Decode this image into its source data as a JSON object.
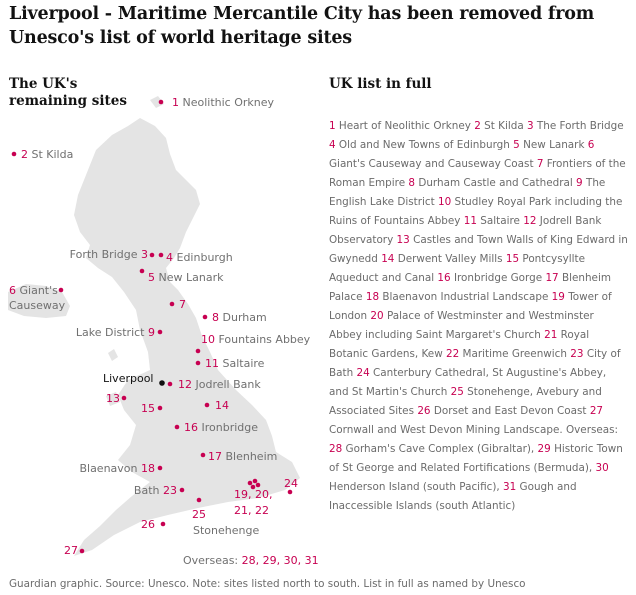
{
  "headline": "Liverpool - Maritime Mercantile City has been removed from Unesco's list of world heritage sites",
  "map_title": "The UK's remaining sites",
  "list_title": "UK list in full",
  "highlight": {
    "label": "Liverpool"
  },
  "map_labels": [
    {
      "id": "1",
      "pre": "",
      "num": "1",
      "text": " Neolithic Orkney",
      "line2": ""
    },
    {
      "id": "2",
      "pre": "",
      "num": "2",
      "text": " St Kilda",
      "line2": ""
    },
    {
      "id": "3",
      "pre": "Forth Bridge ",
      "num": "3",
      "text": "",
      "line2": ""
    },
    {
      "id": "4",
      "pre": "",
      "num": "4",
      "text": " Edinburgh",
      "line2": ""
    },
    {
      "id": "5",
      "pre": "",
      "num": "5",
      "text": " New Lanark",
      "line2": ""
    },
    {
      "id": "6",
      "pre": "",
      "num": "6",
      "text": " Giant's",
      "line2": "Causeway"
    },
    {
      "id": "7",
      "pre": "",
      "num": "7",
      "text": "",
      "line2": ""
    },
    {
      "id": "8",
      "pre": "",
      "num": "8",
      "text": " Durham",
      "line2": ""
    },
    {
      "id": "9",
      "pre": "Lake District ",
      "num": "9",
      "text": "",
      "line2": ""
    },
    {
      "id": "10",
      "pre": "",
      "num": "10",
      "text": " Fountains Abbey",
      "line2": ""
    },
    {
      "id": "11",
      "pre": "",
      "num": "11",
      "text": " Saltaire",
      "line2": ""
    },
    {
      "id": "12",
      "pre": "",
      "num": "12",
      "text": " Jodrell Bank",
      "line2": ""
    },
    {
      "id": "13",
      "pre": "",
      "num": "13",
      "text": "",
      "line2": ""
    },
    {
      "id": "14",
      "pre": "",
      "num": "14",
      "text": "",
      "line2": ""
    },
    {
      "id": "15",
      "pre": "",
      "num": "15",
      "text": "",
      "line2": ""
    },
    {
      "id": "16",
      "pre": "",
      "num": "16",
      "text": " Ironbridge",
      "line2": ""
    },
    {
      "id": "17",
      "pre": "",
      "num": "17",
      "text": " Blenheim",
      "line2": ""
    },
    {
      "id": "18",
      "pre": "Blaenavon ",
      "num": "18",
      "text": "",
      "line2": ""
    },
    {
      "id": "19-22",
      "pre": "",
      "num": "19, 20,",
      "text": "",
      "line2": "21, 22"
    },
    {
      "id": "23",
      "pre": "Bath ",
      "num": "23",
      "text": "",
      "line2": ""
    },
    {
      "id": "24",
      "pre": "",
      "num": "24",
      "text": "",
      "line2": ""
    },
    {
      "id": "25",
      "pre": "",
      "num": "25",
      "text": "",
      "line2": "Stonehenge"
    },
    {
      "id": "26",
      "pre": "",
      "num": "26",
      "text": "",
      "line2": ""
    },
    {
      "id": "27",
      "pre": "",
      "num": "27",
      "text": "",
      "line2": ""
    },
    {
      "id": "overseas",
      "pre": "Overseas: ",
      "num": "28, 29, 30, 31",
      "text": "",
      "line2": ""
    }
  ],
  "full_list": [
    {
      "n": "1",
      "name": "Heart of Neolithic Orkney"
    },
    {
      "n": "2",
      "name": "St Kilda"
    },
    {
      "n": "3",
      "name": "The Forth Bridge"
    },
    {
      "n": "4",
      "name": "Old and New Towns of Edinburgh"
    },
    {
      "n": "5",
      "name": "New Lanark"
    },
    {
      "n": "6",
      "name": "Giant's Causeway and Causeway Coast"
    },
    {
      "n": "7",
      "name": "Frontiers of the Roman Empire"
    },
    {
      "n": "8",
      "name": "Durham Castle and Cathedral"
    },
    {
      "n": "9",
      "name": "The English Lake District"
    },
    {
      "n": "10",
      "name": "Studley Royal Park including the Ruins of Fountains Abbey"
    },
    {
      "n": "11",
      "name": "Saltaire"
    },
    {
      "n": "12",
      "name": "Jodrell Bank Observatory"
    },
    {
      "n": "13",
      "name": "Castles and Town Walls of King Edward in Gwynedd"
    },
    {
      "n": "14",
      "name": "Derwent Valley Mills"
    },
    {
      "n": "15",
      "name": "Pontcysyllte Aqueduct and Canal"
    },
    {
      "n": "16",
      "name": "Ironbridge Gorge"
    },
    {
      "n": "17",
      "name": "Blenheim Palace"
    },
    {
      "n": "18",
      "name": "Blaenavon Industrial Landscape"
    },
    {
      "n": "19",
      "name": "Tower of London"
    },
    {
      "n": "20",
      "name": "Palace of Westminster and Westminster Abbey including Saint Margaret's Church"
    },
    {
      "n": "21",
      "name": "Royal Botanic Gardens, Kew"
    },
    {
      "n": "22",
      "name": "Maritime Greenwich"
    },
    {
      "n": "23",
      "name": "City of Bath"
    },
    {
      "n": "24",
      "name": "Canterbury Cathedral, St Augustine's Abbey, and St Martin's Church"
    },
    {
      "n": "25",
      "name": "Stonehenge, Avebury and Associated Sites"
    },
    {
      "n": "26",
      "name": "Dorset and East Devon Coast"
    },
    {
      "n": "27",
      "name": "Cornwall and West Devon Mining Landscape."
    }
  ],
  "overseas": {
    "label": "Overseas:",
    "items": [
      {
        "n": "28",
        "name": "Gorham's Cave Complex (Gibraltar),"
      },
      {
        "n": "29",
        "name": "Historic Town of St George and Related Fortifications (Bermuda),"
      },
      {
        "n": "30",
        "name": "Henderson Island (south Pacific),"
      },
      {
        "n": "31",
        "name": "Gough and Inaccessible Islands (south Atlantic)"
      }
    ]
  },
  "footer": "Guardian graphic. Source: Unesco. Note: sites listed north to south. List in full as named by Unesco",
  "colors": {
    "site": "#c70051",
    "liverpool": "#121212",
    "land": "#e4e4e4",
    "text": "#707070"
  }
}
